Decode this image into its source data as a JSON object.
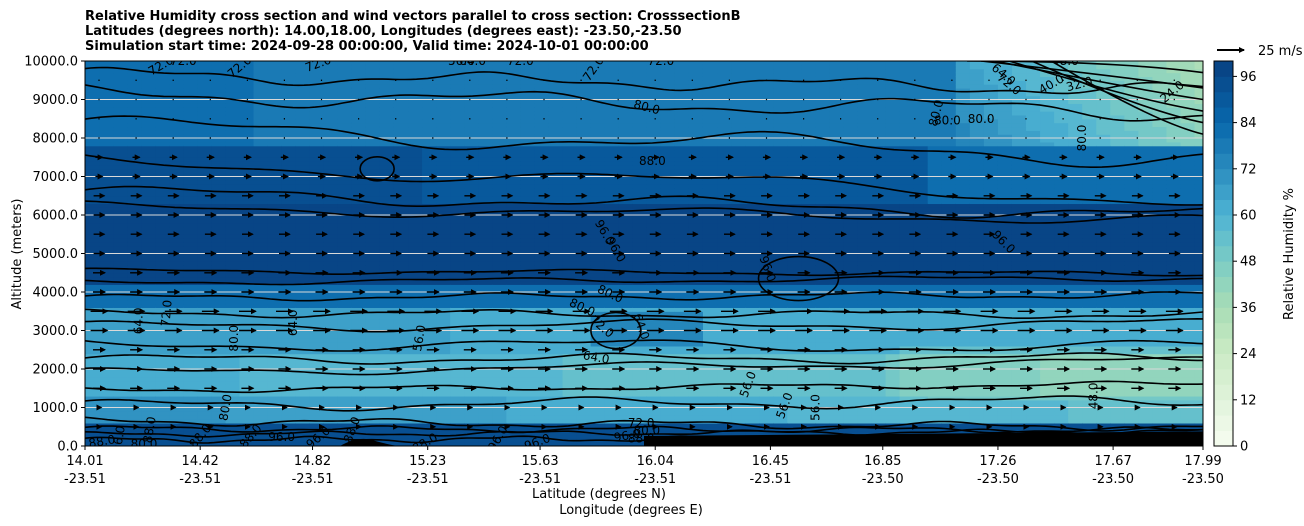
{
  "chart_data": {
    "type": "contourf",
    "title_lines": [
      "Relative Humidity cross section and wind vectors parallel to cross section: CrosssectionB",
      "Latitudes (degrees north): 14.00,18.00, Longitudes (degrees east): -23.50,-23.50",
      "Simulation start time: 2024-09-28 00:00:00, Valid time: 2024-10-01 00:00:00"
    ],
    "ylabel": "Altitude (meters)",
    "xlabel_lat": "Latitude (degrees N)",
    "xlabel_lon": "Longitude (degrees E)",
    "ylim": [
      0,
      10000
    ],
    "y_ticks": [
      "0.0",
      "1000.0",
      "2000.0",
      "3000.0",
      "4000.0",
      "5000.0",
      "6000.0",
      "7000.0",
      "8000.0",
      "9000.0",
      "10000.0"
    ],
    "x_ticks_lat": [
      "14.01",
      "14.42",
      "14.82",
      "15.23",
      "15.63",
      "16.04",
      "16.45",
      "16.85",
      "17.26",
      "17.67",
      "17.99"
    ],
    "x_ticks_lon": [
      "-23.51",
      "-23.51",
      "-23.51",
      "-23.51",
      "-23.51",
      "-23.51",
      "-23.51",
      "-23.50",
      "-23.50",
      "-23.50",
      "-23.50"
    ],
    "grid": "horizontal",
    "colorbar": {
      "label": "Relative Humidity %",
      "range": [
        0,
        100
      ],
      "levels_step": 4,
      "tick_labels": [
        "0",
        "12",
        "24",
        "36",
        "48",
        "60",
        "72",
        "84",
        "96"
      ],
      "tick_values": [
        0,
        12,
        24,
        36,
        48,
        60,
        72,
        84,
        96
      ],
      "colormap": "GnBu",
      "color_low": "#f7fcf0",
      "color_high": "#084081"
    },
    "quiver_key": {
      "label": "25 m/s",
      "speed": 25
    },
    "contour_labels": [
      {
        "text": "72.0",
        "lat": 14.28,
        "z": 9880,
        "rot": -30
      },
      {
        "text": "72.0",
        "lat": 14.36,
        "z": 10000,
        "rot": 0
      },
      {
        "text": "72.0",
        "lat": 14.56,
        "z": 9850,
        "rot": -40
      },
      {
        "text": "72.0",
        "lat": 14.84,
        "z": 9930,
        "rot": -20
      },
      {
        "text": "56.0",
        "lat": 15.35,
        "z": 10000,
        "rot": 0
      },
      {
        "text": "64.0",
        "lat": 15.39,
        "z": 10000,
        "rot": 0
      },
      {
        "text": "72.0",
        "lat": 15.56,
        "z": 10000,
        "rot": 0
      },
      {
        "text": "72.0",
        "lat": 15.82,
        "z": 9800,
        "rot": -55
      },
      {
        "text": "72.0",
        "lat": 16.06,
        "z": 10000,
        "rot": 0
      },
      {
        "text": "80.0",
        "lat": 16.01,
        "z": 8800,
        "rot": 15
      },
      {
        "text": "88.0",
        "lat": 16.03,
        "z": 7400,
        "rot": 0
      },
      {
        "text": "80.0",
        "lat": 17.04,
        "z": 8650,
        "rot": -75
      },
      {
        "text": "80.0",
        "lat": 17.08,
        "z": 8450,
        "rot": 0
      },
      {
        "text": "80.0",
        "lat": 17.2,
        "z": 8500,
        "rot": 0
      },
      {
        "text": "64.0",
        "lat": 17.28,
        "z": 9650,
        "rot": 40
      },
      {
        "text": "72.0",
        "lat": 17.3,
        "z": 9400,
        "rot": 40
      },
      {
        "text": "48.0",
        "lat": 17.5,
        "z": 10000,
        "rot": 0
      },
      {
        "text": "40.0",
        "lat": 17.45,
        "z": 9400,
        "rot": -30
      },
      {
        "text": "32.0",
        "lat": 17.55,
        "z": 9400,
        "rot": -15
      },
      {
        "text": "24.0",
        "lat": 17.88,
        "z": 9200,
        "rot": -40
      },
      {
        "text": "80.0",
        "lat": 17.56,
        "z": 8000,
        "rot": -90
      },
      {
        "text": "96.0",
        "lat": 15.86,
        "z": 5550,
        "rot": 60
      },
      {
        "text": "96.0",
        "lat": 15.9,
        "z": 5100,
        "rot": 60
      },
      {
        "text": "96.0",
        "lat": 16.44,
        "z": 4600,
        "rot": 70
      },
      {
        "text": "96.0",
        "lat": 17.28,
        "z": 5300,
        "rot": 45
      },
      {
        "text": "80.0",
        "lat": 15.88,
        "z": 3950,
        "rot": 25
      },
      {
        "text": "80.0",
        "lat": 15.78,
        "z": 3600,
        "rot": 25
      },
      {
        "text": "72.0",
        "lat": 15.85,
        "z": 3100,
        "rot": 40
      },
      {
        "text": "64.0",
        "lat": 15.99,
        "z": 3100,
        "rot": 70
      },
      {
        "text": "64.0",
        "lat": 15.83,
        "z": 2300,
        "rot": 10
      },
      {
        "text": "56.0",
        "lat": 15.2,
        "z": 2800,
        "rot": -80
      },
      {
        "text": "64.0",
        "lat": 14.75,
        "z": 3200,
        "rot": -90
      },
      {
        "text": "72.0",
        "lat": 14.3,
        "z": 3450,
        "rot": -85
      },
      {
        "text": "64.0",
        "lat": 14.2,
        "z": 3250,
        "rot": -90
      },
      {
        "text": "80.0",
        "lat": 14.54,
        "z": 2800,
        "rot": -90
      },
      {
        "text": "80.0",
        "lat": 14.51,
        "z": 1000,
        "rot": -80
      },
      {
        "text": "56.0",
        "lat": 16.37,
        "z": 1600,
        "rot": -70
      },
      {
        "text": "56.0",
        "lat": 16.5,
        "z": 1050,
        "rot": -70
      },
      {
        "text": "56.0",
        "lat": 16.61,
        "z": 1000,
        "rot": -90
      },
      {
        "text": "48.0",
        "lat": 17.6,
        "z": 1300,
        "rot": -90
      },
      {
        "text": "72.0",
        "lat": 15.99,
        "z": 600,
        "rot": 0
      },
      {
        "text": "80.0",
        "lat": 16.01,
        "z": 400,
        "rot": 0
      },
      {
        "text": "88.0",
        "lat": 15.99,
        "z": 200,
        "rot": 0
      },
      {
        "text": "96.0",
        "lat": 15.94,
        "z": 270,
        "rot": -10
      },
      {
        "text": "96.0",
        "lat": 14.71,
        "z": 230,
        "rot": 0
      },
      {
        "text": "96.0",
        "lat": 14.84,
        "z": 220,
        "rot": -40
      },
      {
        "text": "88.0",
        "lat": 14.96,
        "z": 420,
        "rot": -70
      },
      {
        "text": "88.0",
        "lat": 15.22,
        "z": 80,
        "rot": -30
      },
      {
        "text": "96.0",
        "lat": 15.48,
        "z": 200,
        "rot": -60
      },
      {
        "text": "96.0",
        "lat": 15.62,
        "z": 100,
        "rot": -20
      },
      {
        "text": "88.0",
        "lat": 14.42,
        "z": 260,
        "rot": -50
      },
      {
        "text": "88.0",
        "lat": 14.6,
        "z": 260,
        "rot": -50
      },
      {
        "text": "88.0",
        "lat": 14.07,
        "z": 120,
        "rot": -10
      },
      {
        "text": "96.0",
        "lat": 14.13,
        "z": 180,
        "rot": -80
      },
      {
        "text": "80.0",
        "lat": 14.22,
        "z": 50,
        "rot": 0
      },
      {
        "text": "88.0",
        "lat": 14.24,
        "z": 420,
        "rot": -80
      }
    ]
  }
}
